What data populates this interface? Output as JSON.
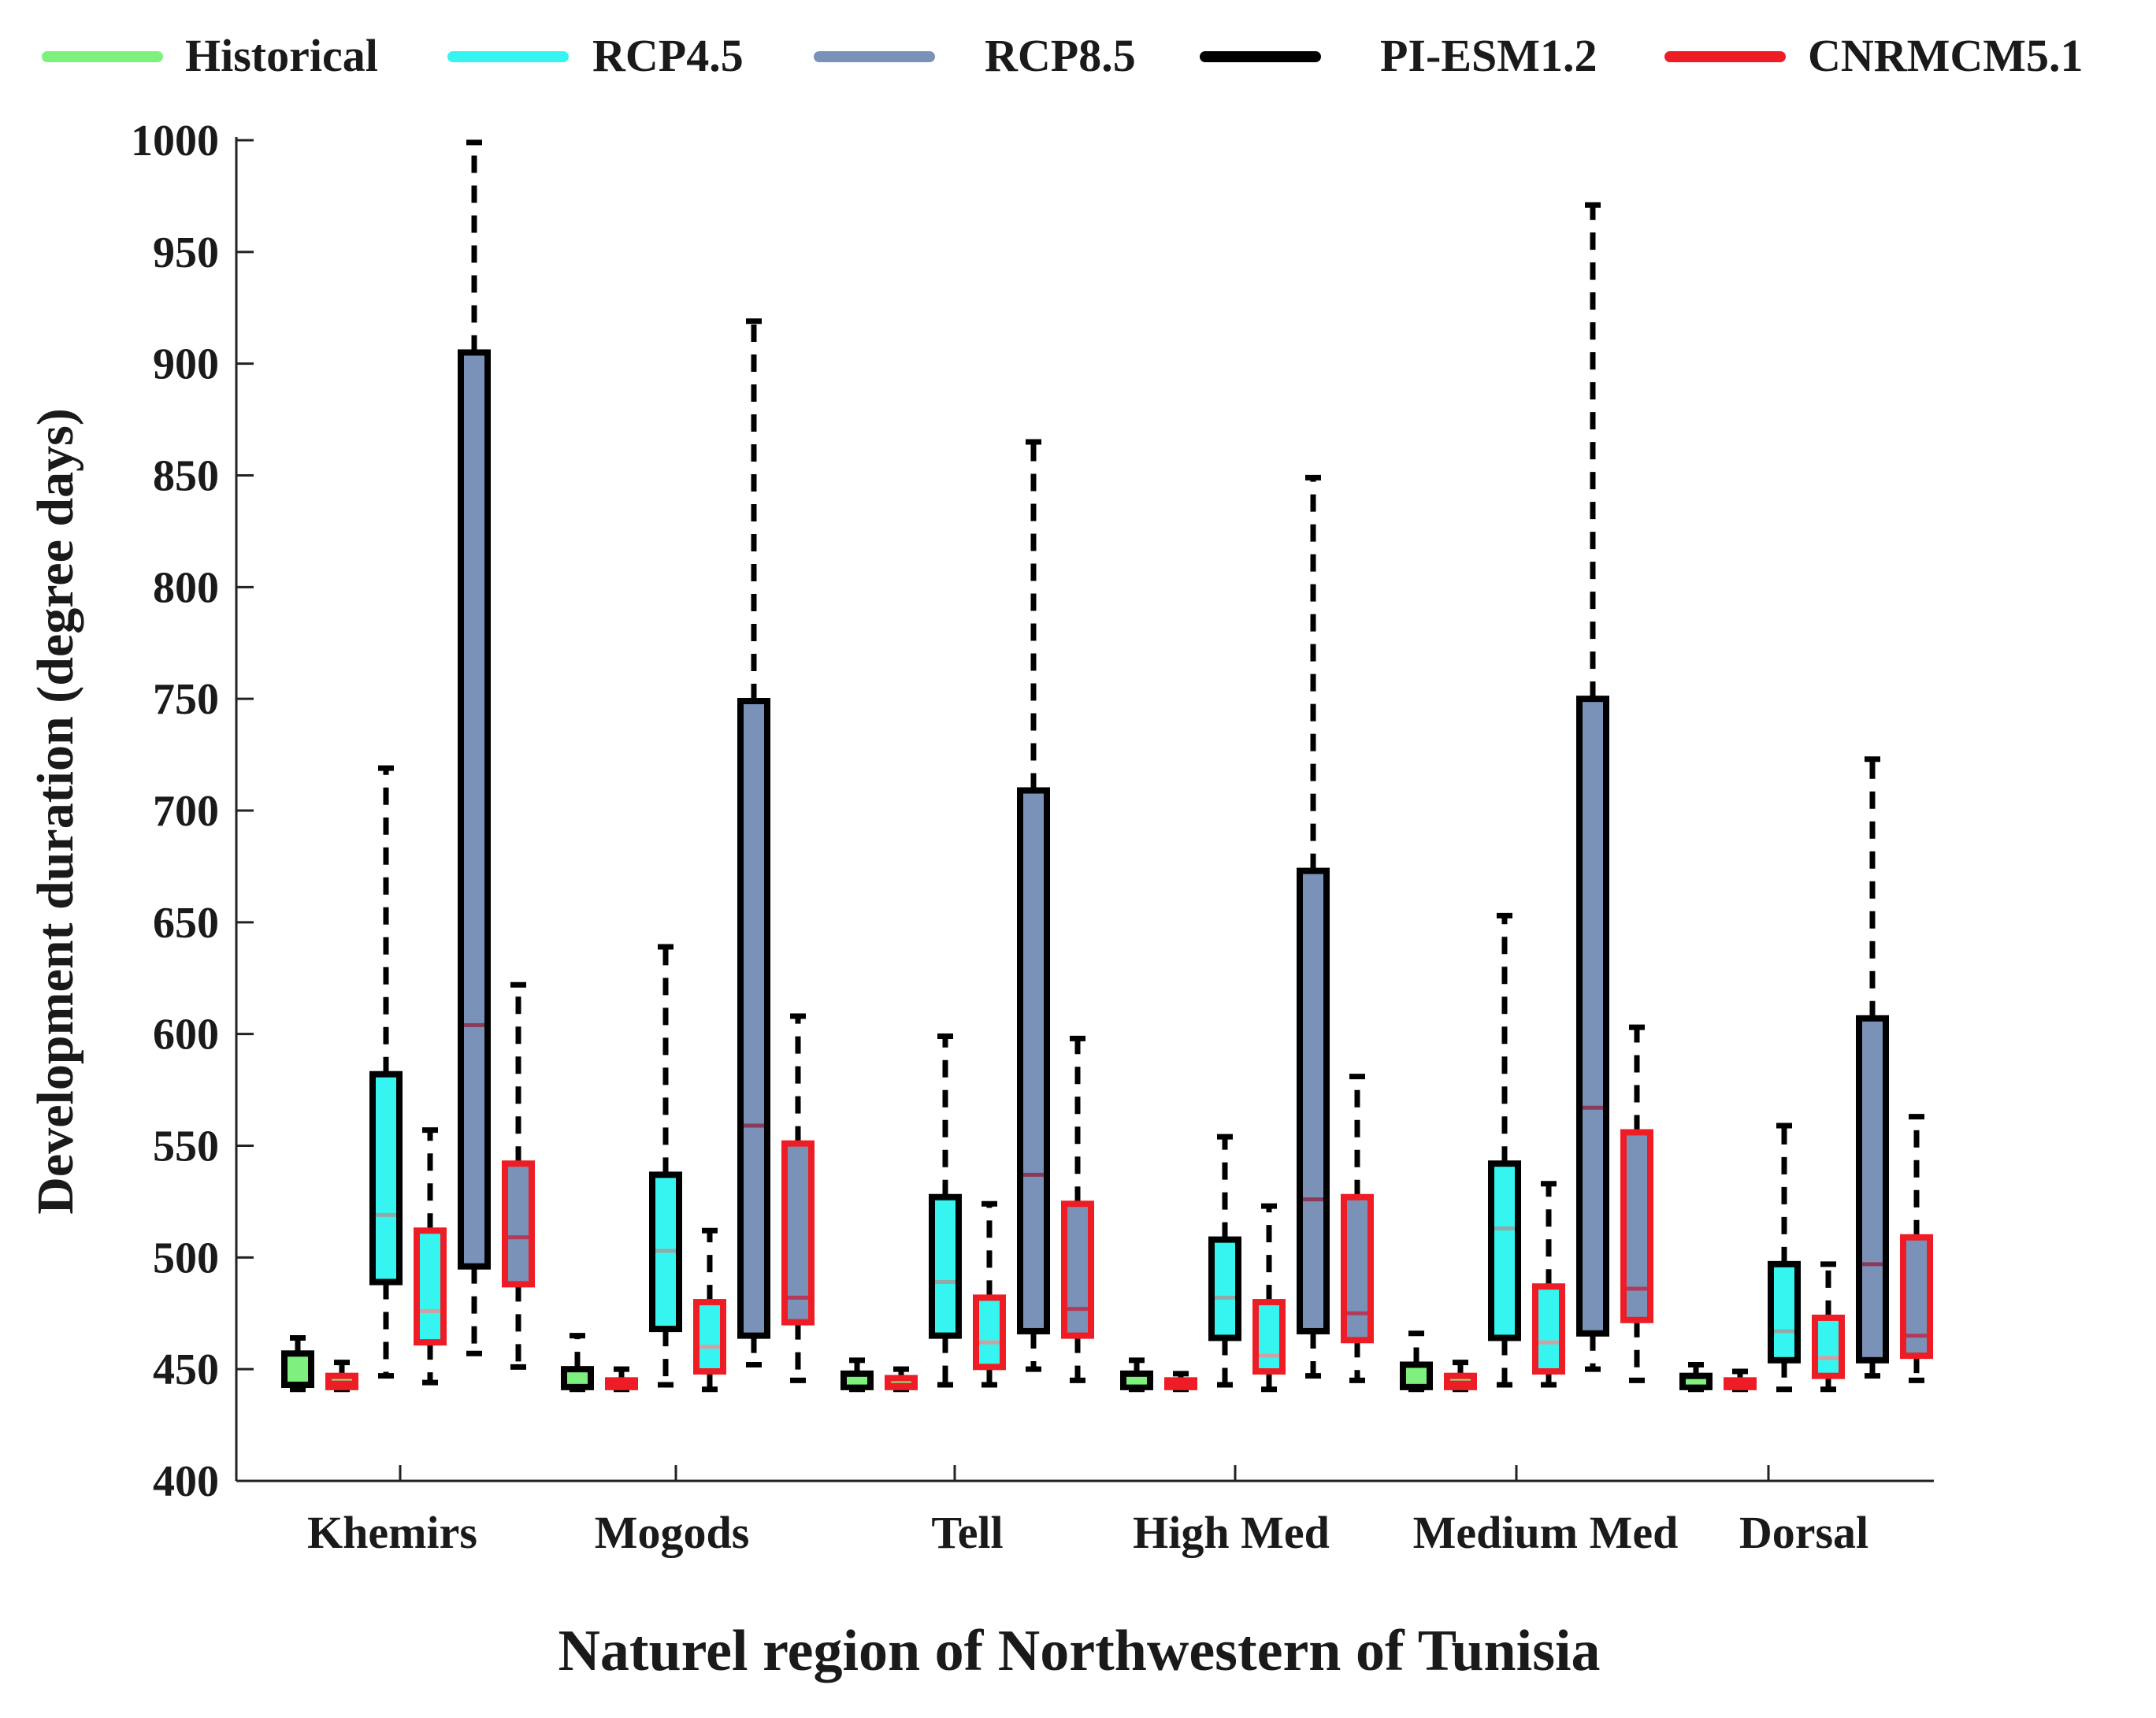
{
  "chart_data": {
    "type": "box",
    "title": "",
    "xlabel": "Naturel region of Northwestern of Tunisia",
    "ylabel": "Development duration (degree days)",
    "ylim": [
      400,
      1000
    ],
    "yticks": [
      400,
      450,
      500,
      550,
      600,
      650,
      700,
      750,
      800,
      850,
      900,
      950,
      1000
    ],
    "categories": [
      "Khemirs",
      "Mogods",
      "Tell",
      "High Med",
      "Medium Med",
      "Dorsal"
    ],
    "legend": [
      {
        "name": "Historical",
        "color": "#7ef07e"
      },
      {
        "name": "RCP4.5",
        "color": "#36f5f0"
      },
      {
        "name": "RCP8.5",
        "color": "#7a92b8"
      },
      {
        "name": "PI-ESM1.2",
        "color": "#000000"
      },
      {
        "name": "CNRMCM5.1",
        "color": "#ee1c24"
      }
    ],
    "series": [
      {
        "name": "Historical / PI-ESM1.2",
        "scenario": "Historical",
        "model": "PI-ESM1.2",
        "boxes": [
          {
            "whisker_low": 441,
            "q1": 443,
            "median": 449,
            "q3": 457,
            "whisker_high": 464
          },
          {
            "whisker_low": 441,
            "q1": 442,
            "median": 445,
            "q3": 450,
            "whisker_high": 465
          },
          {
            "whisker_low": 441,
            "q1": 442,
            "median": 444,
            "q3": 448,
            "whisker_high": 454
          },
          {
            "whisker_low": 441,
            "q1": 442,
            "median": 444,
            "q3": 448,
            "whisker_high": 454
          },
          {
            "whisker_low": 441,
            "q1": 442,
            "median": 447,
            "q3": 452,
            "whisker_high": 466
          },
          {
            "whisker_low": 441,
            "q1": 442,
            "median": 444,
            "q3": 447,
            "whisker_high": 452
          }
        ]
      },
      {
        "name": "Historical / CNRMCM5.1",
        "scenario": "Historical",
        "model": "CNRMCM5.1",
        "boxes": [
          {
            "whisker_low": 441,
            "q1": 442,
            "median": 444,
            "q3": 447,
            "whisker_high": 453
          },
          {
            "whisker_low": 441,
            "q1": 442,
            "median": 443,
            "q3": 445,
            "whisker_high": 450
          },
          {
            "whisker_low": 441,
            "q1": 442,
            "median": 443,
            "q3": 446,
            "whisker_high": 450
          },
          {
            "whisker_low": 441,
            "q1": 442,
            "median": 443,
            "q3": 445,
            "whisker_high": 448
          },
          {
            "whisker_low": 441,
            "q1": 442,
            "median": 444,
            "q3": 447,
            "whisker_high": 453
          },
          {
            "whisker_low": 441,
            "q1": 442,
            "median": 443,
            "q3": 445,
            "whisker_high": 449
          }
        ]
      },
      {
        "name": "RCP4.5 / PI-ESM1.2",
        "scenario": "RCP4.5",
        "model": "PI-ESM1.2",
        "boxes": [
          {
            "whisker_low": 447,
            "q1": 489,
            "median": 519,
            "q3": 582,
            "whisker_high": 719
          },
          {
            "whisker_low": 443,
            "q1": 468,
            "median": 503,
            "q3": 537,
            "whisker_high": 639
          },
          {
            "whisker_low": 443,
            "q1": 465,
            "median": 489,
            "q3": 527,
            "whisker_high": 599
          },
          {
            "whisker_low": 443,
            "q1": 464,
            "median": 482,
            "q3": 508,
            "whisker_high": 554
          },
          {
            "whisker_low": 443,
            "q1": 464,
            "median": 513,
            "q3": 542,
            "whisker_high": 653
          },
          {
            "whisker_low": 441,
            "q1": 454,
            "median": 467,
            "q3": 497,
            "whisker_high": 559
          }
        ]
      },
      {
        "name": "RCP4.5 / CNRMCM5.1",
        "scenario": "RCP4.5",
        "model": "CNRMCM5.1",
        "boxes": [
          {
            "whisker_low": 444,
            "q1": 462,
            "median": 476,
            "q3": 512,
            "whisker_high": 557
          },
          {
            "whisker_low": 441,
            "q1": 449,
            "median": 460,
            "q3": 480,
            "whisker_high": 512
          },
          {
            "whisker_low": 443,
            "q1": 451,
            "median": 462,
            "q3": 482,
            "whisker_high": 524
          },
          {
            "whisker_low": 441,
            "q1": 449,
            "median": 456,
            "q3": 480,
            "whisker_high": 523
          },
          {
            "whisker_low": 443,
            "q1": 449,
            "median": 462,
            "q3": 487,
            "whisker_high": 533
          },
          {
            "whisker_low": 441,
            "q1": 447,
            "median": 455,
            "q3": 473,
            "whisker_high": 497
          }
        ]
      },
      {
        "name": "RCP8.5 / PI-ESM1.2",
        "scenario": "RCP8.5",
        "model": "PI-ESM1.2",
        "boxes": [
          {
            "whisker_low": 457,
            "q1": 496,
            "median": 604,
            "q3": 905,
            "whisker_high": 999
          },
          {
            "whisker_low": 452,
            "q1": 465,
            "median": 559,
            "q3": 749,
            "whisker_high": 919
          },
          {
            "whisker_low": 450,
            "q1": 467,
            "median": 537,
            "q3": 709,
            "whisker_high": 865
          },
          {
            "whisker_low": 447,
            "q1": 467,
            "median": 526,
            "q3": 673,
            "whisker_high": 849
          },
          {
            "whisker_low": 450,
            "q1": 466,
            "median": 567,
            "q3": 750,
            "whisker_high": 971
          },
          {
            "whisker_low": 447,
            "q1": 454,
            "median": 497,
            "q3": 607,
            "whisker_high": 723
          }
        ]
      },
      {
        "name": "RCP8.5 / CNRMCM5.1",
        "scenario": "RCP8.5",
        "model": "CNRMCM5.1",
        "boxes": [
          {
            "whisker_low": 451,
            "q1": 488,
            "median": 509,
            "q3": 542,
            "whisker_high": 622
          },
          {
            "whisker_low": 445,
            "q1": 471,
            "median": 482,
            "q3": 551,
            "whisker_high": 608
          },
          {
            "whisker_low": 445,
            "q1": 465,
            "median": 477,
            "q3": 524,
            "whisker_high": 598
          },
          {
            "whisker_low": 445,
            "q1": 463,
            "median": 475,
            "q3": 527,
            "whisker_high": 581
          },
          {
            "whisker_low": 445,
            "q1": 472,
            "median": 486,
            "q3": 556,
            "whisker_high": 603
          },
          {
            "whisker_low": 445,
            "q1": 456,
            "median": 465,
            "q3": 509,
            "whisker_high": 563
          }
        ]
      }
    ]
  }
}
